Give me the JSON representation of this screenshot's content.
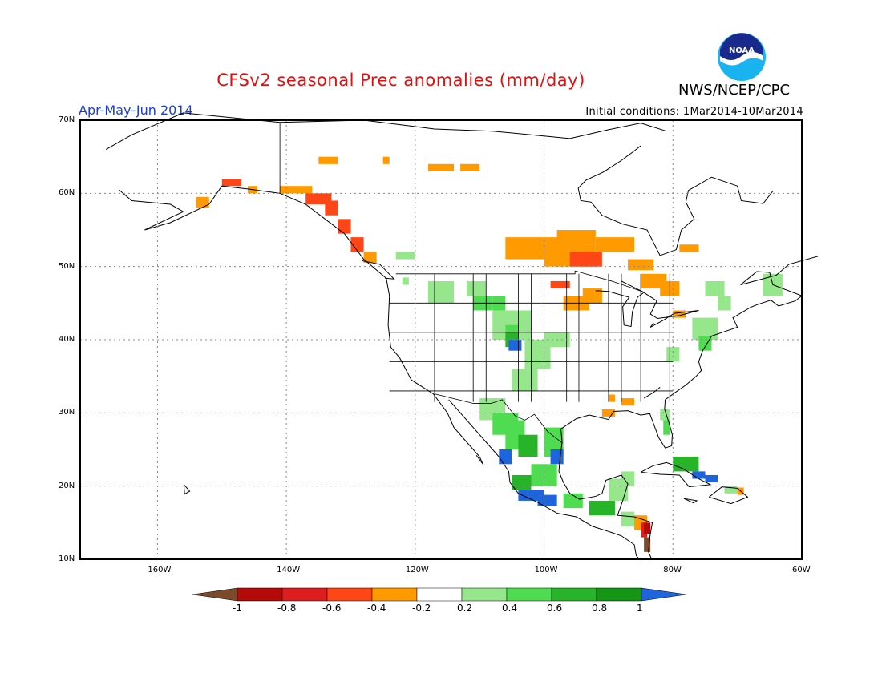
{
  "title": "CFSv2 seasonal Prec anomalies (mm/day)",
  "organization": "NWS/NCEP/CPC",
  "logo_text": "NOAA",
  "season": "Apr-May-Jun 2014",
  "initial_conditions": "Initial conditions:  1Mar2014-10Mar2014",
  "axes": {
    "lat_labels": [
      "70N",
      "60N",
      "50N",
      "40N",
      "30N",
      "20N",
      "10N"
    ],
    "lon_labels": [
      "160W",
      "140W",
      "120W",
      "100W",
      "80W",
      "60W"
    ]
  },
  "colorbar": {
    "labels": [
      "-1",
      "-0.8",
      "-0.6",
      "-0.4",
      "-0.2",
      "0.2",
      "0.4",
      "0.6",
      "0.8",
      "1"
    ],
    "colors": [
      "#7b4a2a",
      "#b40a0a",
      "#dc1e1e",
      "#ff4616",
      "#ff9a00",
      "#ffffff",
      "#96e68c",
      "#50dc50",
      "#28b428",
      "#149614",
      "#1e64dc"
    ]
  },
  "legend_colors": {
    "brown": "#7b4a2a",
    "darkred": "#b40a0a",
    "red": "#dc1e1e",
    "orangered": "#ff4616",
    "orange": "#ff9a00",
    "lightgreen": "#96e68c",
    "green": "#50dc50",
    "midgreen": "#28b428",
    "darkgreen": "#149614",
    "blue": "#1e64dc"
  },
  "map_extent": {
    "lon_min": -172,
    "lon_max": -60,
    "lat_min": 10,
    "lat_max": 70
  }
}
